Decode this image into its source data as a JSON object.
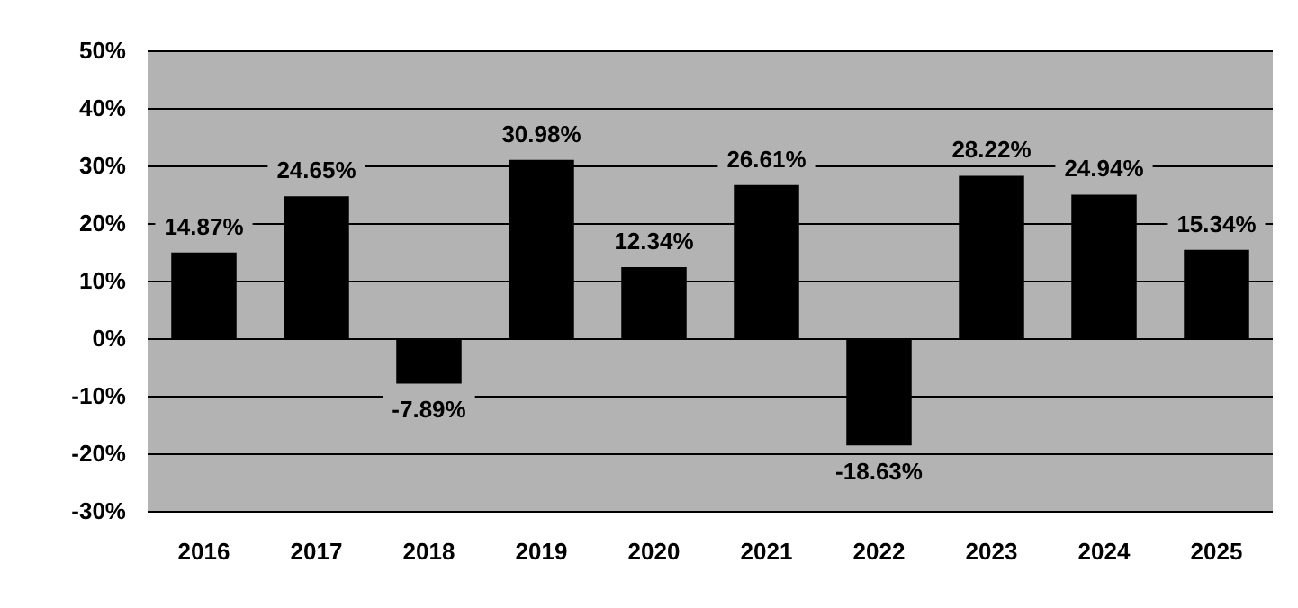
{
  "chart_data": {
    "type": "bar",
    "categories": [
      "2016",
      "2017",
      "2018",
      "2019",
      "2020",
      "2021",
      "2022",
      "2023",
      "2024",
      "2025"
    ],
    "values": [
      14.87,
      24.65,
      -7.89,
      30.98,
      12.34,
      26.61,
      -18.63,
      28.22,
      24.94,
      15.34
    ],
    "value_labels": [
      "14.87%",
      "24.65%",
      "-7.89%",
      "30.98%",
      "12.34%",
      "26.61%",
      "-18.63%",
      "28.22%",
      "24.94%",
      "15.34%"
    ],
    "color": "#000000",
    "ylim": [
      -30,
      50
    ],
    "yticks": [
      {
        "value": -30,
        "label": "-30%"
      },
      {
        "value": -20,
        "label": "-20%"
      },
      {
        "value": -10,
        "label": "-10%"
      },
      {
        "value": 0,
        "label": "0%"
      },
      {
        "value": 10,
        "label": "10%"
      },
      {
        "value": 20,
        "label": "20%"
      },
      {
        "value": 30,
        "label": "30%"
      },
      {
        "value": 40,
        "label": "40%"
      },
      {
        "value": 50,
        "label": "50%"
      }
    ],
    "grid": "y"
  }
}
